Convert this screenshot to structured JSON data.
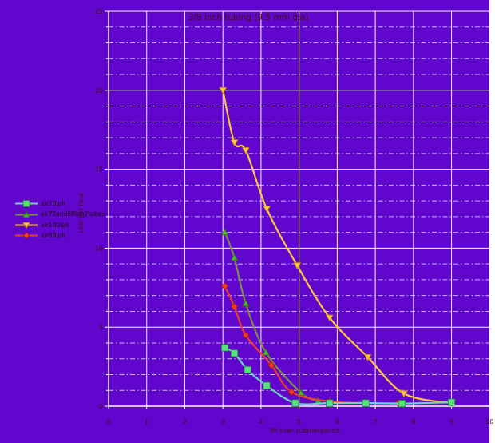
{
  "page": {
    "background_color": "#6106cd",
    "side_strip_color": "#ffffff",
    "axis_text_color": "#42100a",
    "legend_text_color": "#1d0b05"
  },
  "chart_data": {
    "type": "line",
    "title": "3/8 inch tubing (9.5 mm dia)",
    "xlabel": "lift over submergence",
    "ylabel": "Liter per hour",
    "xlim": [
      0,
      10
    ],
    "ylim": [
      0,
      25
    ],
    "x_ticks": [
      0,
      1,
      2,
      3,
      4,
      5,
      6,
      7,
      8,
      9,
      10
    ],
    "y_ticks": [
      0,
      5,
      10,
      15,
      20,
      25
    ],
    "y_minor_step": 1,
    "grid": {
      "major_color": "#ffffff",
      "minor_color": "#ece4fb",
      "minor_style": "dash-dot",
      "vertical_major": true,
      "horizontal_minor": true
    },
    "legend_position": "left-middle",
    "series": [
      {
        "name": "air70lph",
        "line_color": "#6fd3c3",
        "marker": "square",
        "marker_fill": "#58e07a",
        "marker_stroke": "#1f7d40",
        "z": 4,
        "points": [
          [
            3.05,
            3.7
          ],
          [
            3.3,
            3.35
          ],
          [
            3.65,
            2.3
          ],
          [
            4.15,
            1.3
          ],
          [
            4.9,
            0.2
          ],
          [
            5.8,
            0.2
          ],
          [
            6.75,
            0.2
          ],
          [
            7.7,
            0.17
          ],
          [
            9.0,
            0.25
          ]
        ]
      },
      {
        "name": "air72and88lph2tubes",
        "line_color": "#7e8c4a",
        "marker": "triangle-up",
        "marker_fill": "#4fae3b",
        "marker_stroke": "#2d641f",
        "z": 1,
        "points": [
          [
            3.05,
            11.0
          ],
          [
            3.3,
            9.4
          ],
          [
            3.6,
            6.5
          ],
          [
            4.13,
            3.4
          ],
          [
            5.05,
            0.85
          ],
          [
            5.5,
            0.35
          ]
        ]
      },
      {
        "name": "air100lph",
        "line_color": "#ffc73c",
        "marker": "triangle-down",
        "marker_fill": "#ffc73c",
        "marker_stroke": "#c08414",
        "z": 2,
        "points": [
          [
            3.0,
            20.0
          ],
          [
            3.3,
            16.7
          ],
          [
            3.6,
            16.2
          ],
          [
            4.15,
            12.5
          ],
          [
            4.95,
            8.9
          ],
          [
            5.8,
            5.6
          ],
          [
            6.8,
            3.1
          ],
          [
            7.75,
            0.8
          ],
          [
            9.0,
            0.2
          ]
        ]
      },
      {
        "name": "air88lph",
        "line_color": "#ef3b2d",
        "marker": "diamond",
        "marker_fill": "#ef3b2d",
        "marker_stroke": "#9c1408",
        "z": 3,
        "points": [
          [
            3.05,
            7.6
          ],
          [
            3.3,
            6.3
          ],
          [
            3.6,
            4.5
          ],
          [
            4.27,
            2.6
          ],
          [
            4.8,
            0.9
          ],
          [
            5.8,
            0.3
          ],
          [
            6.75,
            0.2
          ],
          [
            7.6,
            0.2
          ]
        ]
      }
    ]
  }
}
